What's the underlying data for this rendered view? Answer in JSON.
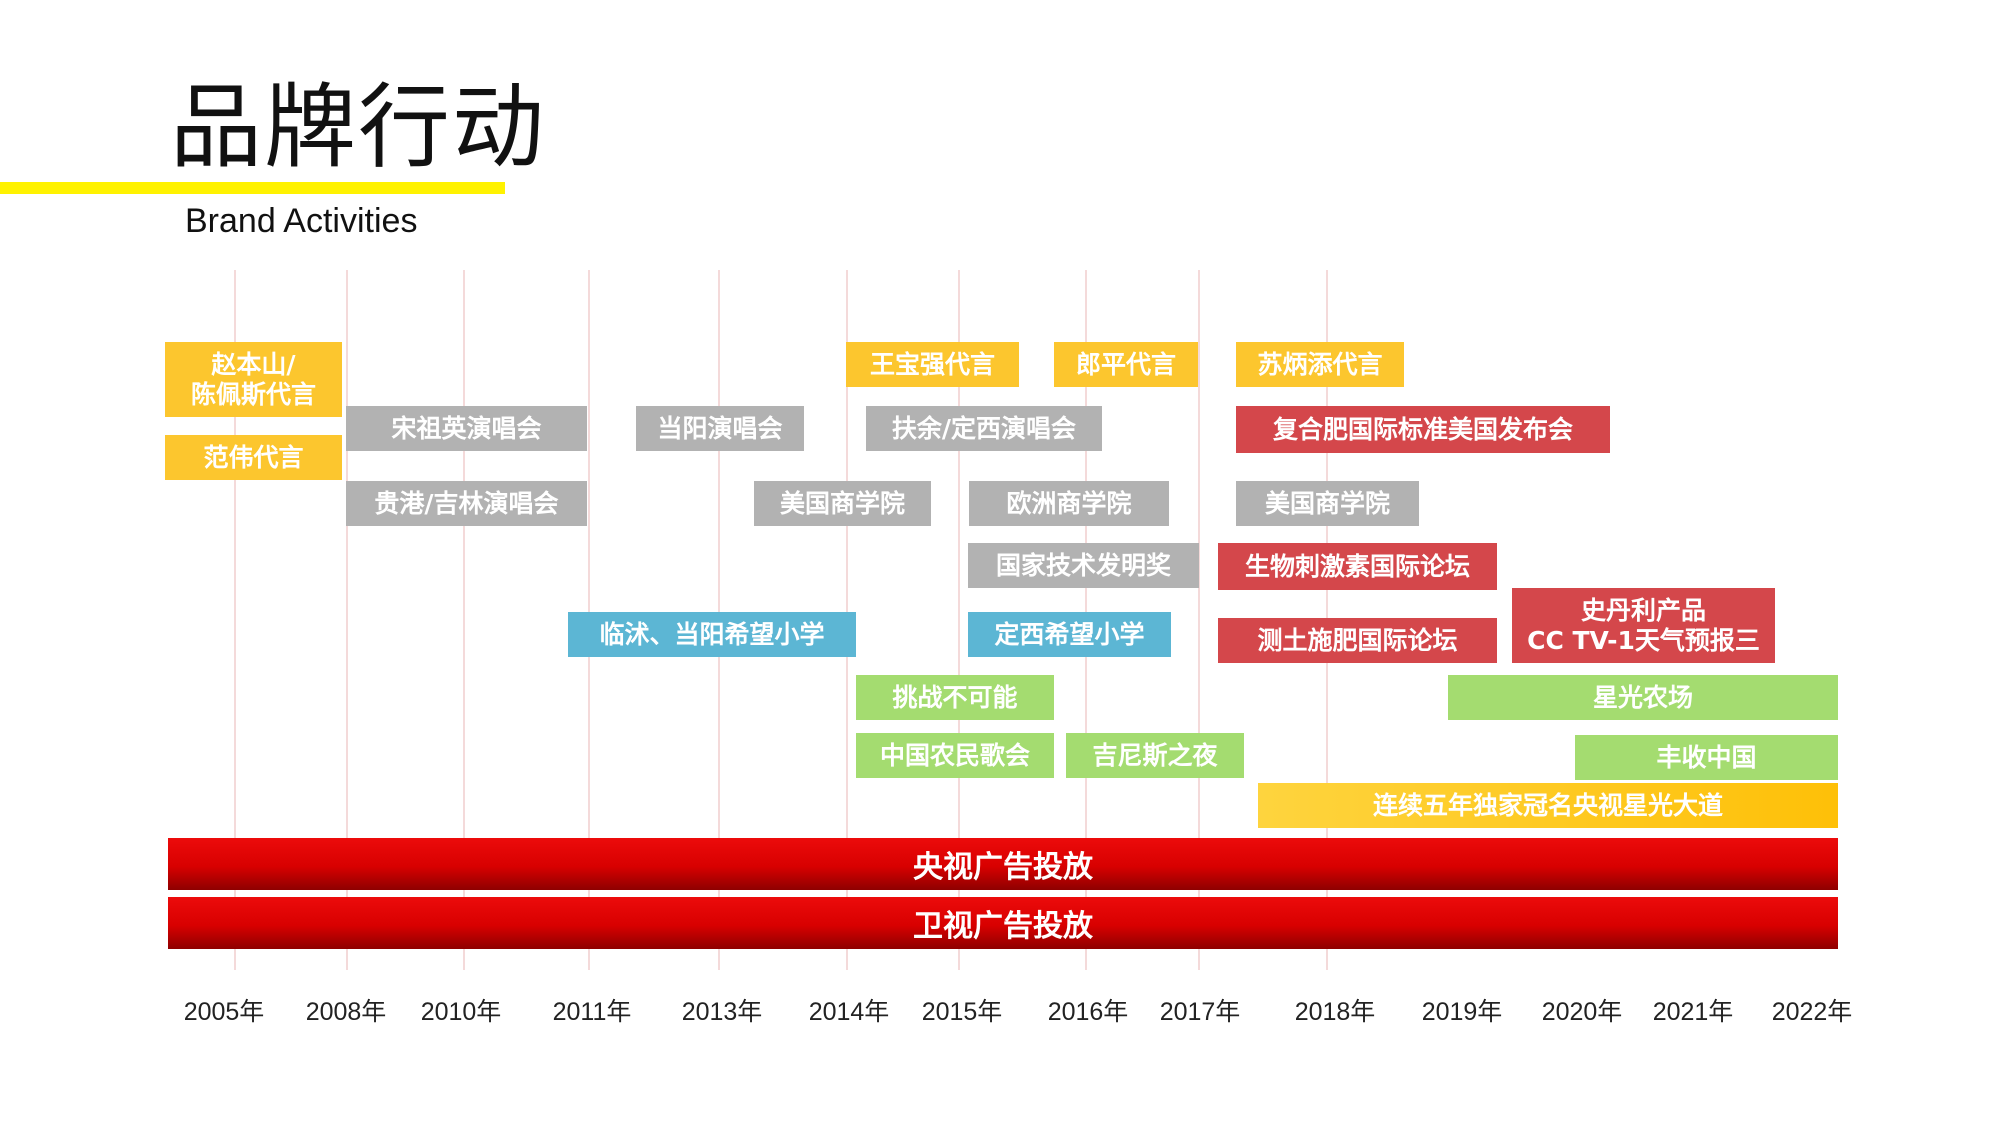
{
  "header": {
    "title": "品牌行动",
    "subtitle": "Brand Activities"
  },
  "colors": {
    "yellow": "#fcc62e",
    "gray": "#b2b2b2",
    "red": "#d4474b",
    "blue": "#5cb6d4",
    "green": "#a4dc70",
    "bar_red": "#d80000",
    "accent_rule": "#fff200"
  },
  "years": [
    "2005年",
    "2008年",
    "2010年",
    "2011年",
    "2013年",
    "2014年",
    "2015年",
    "2016年",
    "2017年",
    "2018年",
    "2019年",
    "2020年",
    "2021年",
    "2022年"
  ],
  "bars": [
    {
      "label": "央视广告投放"
    },
    {
      "label": "卫视广告投放"
    }
  ],
  "activities": [
    {
      "id": "zhao-benshan",
      "label": "赵本山/\n陈佩斯代言",
      "category": "yellow"
    },
    {
      "id": "fan-wei",
      "label": "范伟代言",
      "category": "yellow"
    },
    {
      "id": "song-zuying",
      "label": "宋祖英演唱会",
      "category": "gray"
    },
    {
      "id": "guigang-jilin",
      "label": "贵港/吉林演唱会",
      "category": "gray"
    },
    {
      "id": "dangyang-concert",
      "label": "当阳演唱会",
      "category": "gray"
    },
    {
      "id": "linshu-school",
      "label": "临沭、当阳希望小学",
      "category": "blue"
    },
    {
      "id": "wang-baoqiang",
      "label": "王宝强代言",
      "category": "yellow"
    },
    {
      "id": "lang-ping",
      "label": "郎平代言",
      "category": "yellow"
    },
    {
      "id": "su-bingtian",
      "label": "苏炳添代言",
      "category": "yellow"
    },
    {
      "id": "fuyu-dingxi",
      "label": "扶余/定西演唱会",
      "category": "gray"
    },
    {
      "id": "us-business-1",
      "label": "美国商学院",
      "category": "gray"
    },
    {
      "id": "euro-business",
      "label": "欧洲商学院",
      "category": "gray"
    },
    {
      "id": "us-business-2",
      "label": "美国商学院",
      "category": "gray"
    },
    {
      "id": "tech-award",
      "label": "国家技术发明奖",
      "category": "gray"
    },
    {
      "id": "dingxi-school",
      "label": "定西希望小学",
      "category": "blue"
    },
    {
      "id": "challenge",
      "label": "挑战不可能",
      "category": "green"
    },
    {
      "id": "farmer-gala",
      "label": "中国农民歌会",
      "category": "green"
    },
    {
      "id": "guinness",
      "label": "吉尼斯之夜",
      "category": "green"
    },
    {
      "id": "compound-us",
      "label": "复合肥国际标准美国发布会",
      "category": "red"
    },
    {
      "id": "biostim",
      "label": "生物刺激素国际论坛",
      "category": "red"
    },
    {
      "id": "soil-forum",
      "label": "测土施肥国际论坛",
      "category": "red"
    },
    {
      "id": "cctv1-weather",
      "label": "史丹利产品\nCC TV-1天气预报三",
      "category": "red"
    },
    {
      "id": "star-farm",
      "label": "星光农场",
      "category": "green"
    },
    {
      "id": "harvest-china",
      "label": "丰收中国",
      "category": "green"
    },
    {
      "id": "star-avenue",
      "label": "连续五年独家冠名央视星光大道",
      "category": "gold"
    }
  ]
}
